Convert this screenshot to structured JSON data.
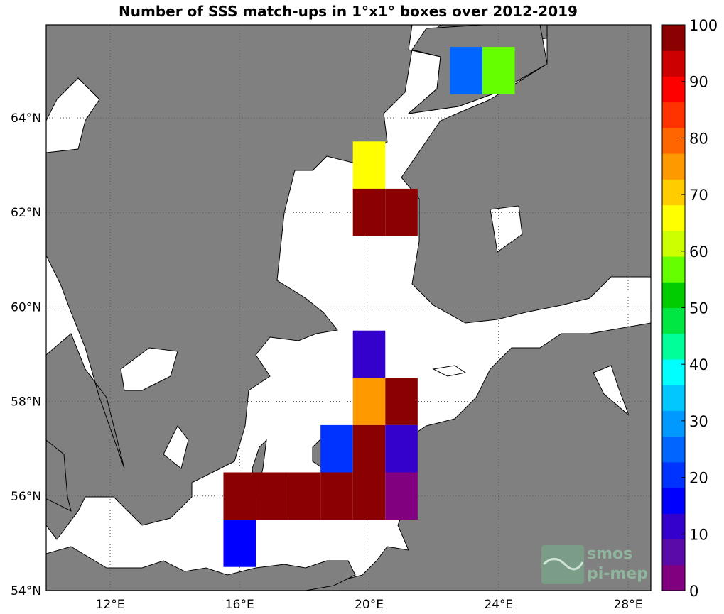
{
  "title": "Number of SSS match-ups in 1°x1° boxes over 2012-2019",
  "axes": {
    "lon_ticks": [
      {
        "value": 12,
        "label": "12°E"
      },
      {
        "value": 16,
        "label": "16°E"
      },
      {
        "value": 20,
        "label": "20°E"
      },
      {
        "value": 24,
        "label": "24°E"
      },
      {
        "value": 28,
        "label": "28°E"
      }
    ],
    "lat_ticks": [
      {
        "value": 54,
        "label": "54°N"
      },
      {
        "value": 56,
        "label": "56°N"
      },
      {
        "value": 58,
        "label": "58°N"
      },
      {
        "value": 60,
        "label": "60°N"
      },
      {
        "value": 62,
        "label": "62°N"
      },
      {
        "value": 64,
        "label": "64°N"
      }
    ],
    "lon_range": [
      10,
      28.7
    ],
    "lat_range": [
      54,
      66
    ],
    "grid": "dotted"
  },
  "colorbar": {
    "min": 0,
    "max": 100,
    "ticks": [
      0,
      10,
      20,
      30,
      40,
      50,
      60,
      70,
      80,
      90,
      100
    ],
    "colors": [
      "#800080",
      "#5a0aa8",
      "#3300cc",
      "#0000ff",
      "#0033ff",
      "#0066ff",
      "#0099ff",
      "#00c8ff",
      "#00ffff",
      "#00ff99",
      "#00e642",
      "#00cc00",
      "#66ff00",
      "#ccff00",
      "#ffff00",
      "#ffcc00",
      "#ff9900",
      "#ff6600",
      "#ff3300",
      "#ff0000",
      "#cc0000",
      "#8b0000"
    ]
  },
  "logo": {
    "line1": "smos",
    "line2": "pi-mep"
  },
  "colors": {
    "land": "#808080",
    "sea": "#ffffff",
    "frame": "#000000"
  },
  "chart_data": {
    "type": "heatmap",
    "title": "Number of SSS match-ups in 1°x1° boxes over 2012-2019",
    "cells": [
      {
        "lon": 23,
        "lat": 65,
        "value": 27
      },
      {
        "lon": 24,
        "lat": 65,
        "value": 57
      },
      {
        "lon": 20,
        "lat": 63,
        "value": 68
      },
      {
        "lon": 20,
        "lat": 62,
        "value": 100
      },
      {
        "lon": 21,
        "lat": 62,
        "value": 100
      },
      {
        "lon": 20,
        "lat": 59,
        "value": 11
      },
      {
        "lon": 20,
        "lat": 58,
        "value": 77
      },
      {
        "lon": 21,
        "lat": 58,
        "value": 100
      },
      {
        "lon": 19,
        "lat": 57,
        "value": 20
      },
      {
        "lon": 20,
        "lat": 57,
        "value": 100
      },
      {
        "lon": 21,
        "lat": 57,
        "value": 12
      },
      {
        "lon": 16,
        "lat": 56,
        "value": 100
      },
      {
        "lon": 17,
        "lat": 56,
        "value": 100
      },
      {
        "lon": 18,
        "lat": 56,
        "value": 100
      },
      {
        "lon": 19,
        "lat": 56,
        "value": 100
      },
      {
        "lon": 20,
        "lat": 56,
        "value": 100
      },
      {
        "lon": 21,
        "lat": 56,
        "value": 4
      },
      {
        "lon": 16,
        "lat": 55,
        "value": 16
      }
    ]
  }
}
